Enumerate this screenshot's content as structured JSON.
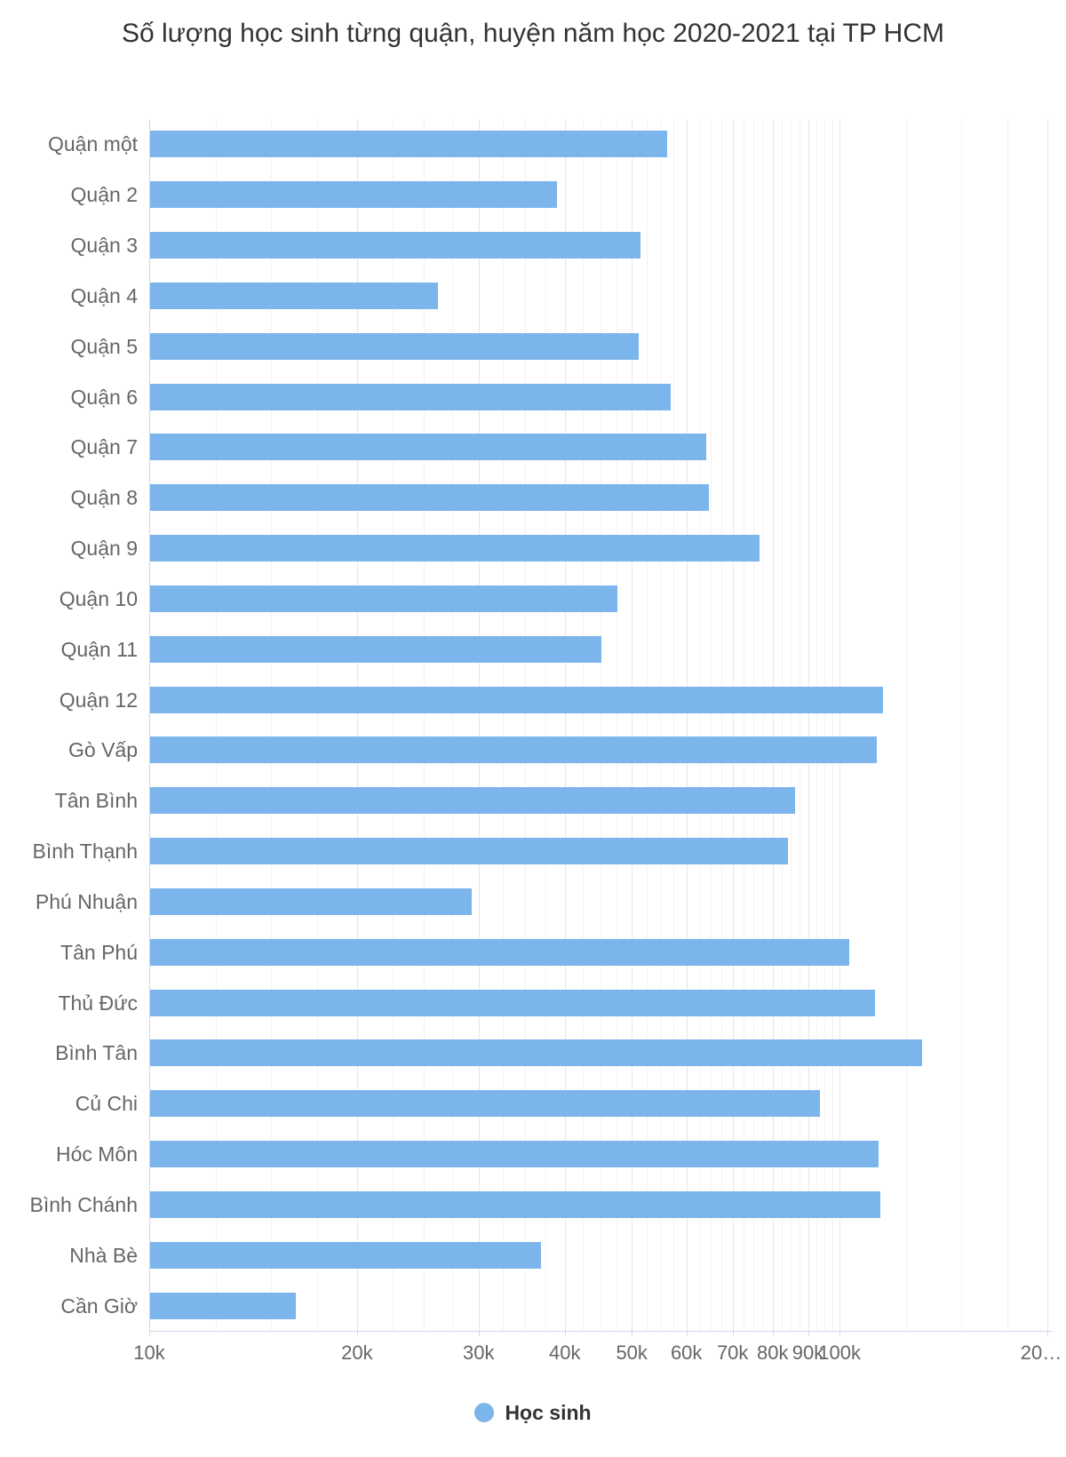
{
  "title": "Số lượng học sinh từng quận, huyện năm học 2020-2021 tại TP HCM",
  "legend": {
    "label": "Học sinh",
    "marker_color": "#7cb5ec"
  },
  "colors": {
    "bar": "#7cb5ec",
    "axis_line": "#ccd6eb",
    "major_grid": "#e6e6e6",
    "minor_grid": "#f2f2f2",
    "tick_label": "#666666",
    "title": "#333333"
  },
  "chart_data": {
    "type": "bar",
    "orientation": "horizontal",
    "x_scale": "log",
    "grid": true,
    "legend_position": "bottom",
    "xlabel": "",
    "ylabel": "",
    "xlim": [
      10000,
      200000
    ],
    "categories": [
      "Quận một",
      "Quận 2",
      "Quận 3",
      "Quận 4",
      "Quận 5",
      "Quận 6",
      "Quận 7",
      "Quận 8",
      "Quận 9",
      "Quận 10",
      "Quận 11",
      "Quận 12",
      "Gò Vấp",
      "Tân Bình",
      "Bình Thạnh",
      "Phú Nhuận",
      "Tân Phú",
      "Thủ Đức",
      "Bình Tân",
      "Củ Chi",
      "Hóc Môn",
      "Bình Chánh",
      "Nhà Bè",
      "Cần Giờ"
    ],
    "series": [
      {
        "name": "Học sinh",
        "values": [
          56200,
          39000,
          51500,
          26200,
          51200,
          56900,
          64100,
          64700,
          76600,
          47700,
          45200,
          115600,
          113300,
          86200,
          84100,
          29300,
          103400,
          112500,
          131500,
          93600,
          113800,
          114700,
          36900,
          16300
        ]
      }
    ],
    "x_major_ticks": [
      {
        "value": 10000,
        "label": "10k"
      },
      {
        "value": 20000,
        "label": "20k"
      },
      {
        "value": 30000,
        "label": "30k"
      },
      {
        "value": 40000,
        "label": "40k"
      },
      {
        "value": 50000,
        "label": "50k"
      },
      {
        "value": 60000,
        "label": "60k"
      },
      {
        "value": 70000,
        "label": "70k"
      },
      {
        "value": 80000,
        "label": "80k"
      },
      {
        "value": 90000,
        "label": "90k"
      },
      {
        "value": 100000,
        "label": "100k"
      },
      {
        "value": 200000,
        "label": "20…"
      }
    ],
    "x_minor_ticks": [
      12500,
      15000,
      17500,
      22500,
      25000,
      27500,
      32500,
      35000,
      37500,
      42500,
      45000,
      47500,
      52500,
      55000,
      57500,
      62500,
      65000,
      67500,
      72500,
      75000,
      77500,
      82500,
      85000,
      87500,
      92500,
      95000,
      97500,
      125000,
      150000,
      175000
    ]
  }
}
